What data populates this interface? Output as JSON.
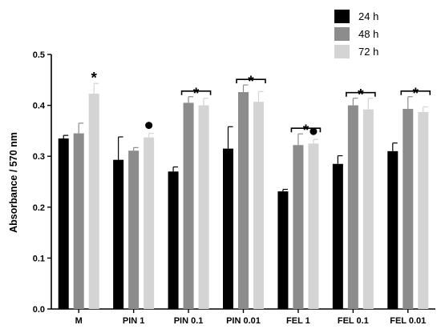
{
  "chart_data": {
    "type": "bar",
    "title": "",
    "xlabel": "",
    "ylabel": "Absorbance / 570 nm",
    "ylim": [
      0,
      0.5
    ],
    "yticks": [
      "0.0",
      "0.1",
      "0.2",
      "0.3",
      "0.4",
      "0.5"
    ],
    "grid": false,
    "legend_position": "top-right",
    "categories": [
      "M",
      "PIN 1",
      "PIN 0.1",
      "PIN 0.01",
      "FEL 1",
      "FEL 0.1",
      "FEL 0.01"
    ],
    "series": [
      {
        "name": "24 h",
        "color": "#000000",
        "values": [
          0.335,
          0.293,
          0.27,
          0.315,
          0.231,
          0.285,
          0.31
        ],
        "errors": [
          0.006,
          0.045,
          0.009,
          0.043,
          0.004,
          0.016,
          0.016
        ]
      },
      {
        "name": "48 h",
        "color": "#8c8c8c",
        "values": [
          0.345,
          0.311,
          0.405,
          0.426,
          0.322,
          0.4,
          0.393
        ],
        "errors": [
          0.02,
          0.006,
          0.012,
          0.014,
          0.022,
          0.014,
          0.024
        ]
      },
      {
        "name": "72 h",
        "color": "#d4d4d4",
        "values": [
          0.423,
          0.337,
          0.4,
          0.407,
          0.325,
          0.392,
          0.387
        ],
        "errors": [
          0.02,
          0.008,
          0.014,
          0.02,
          0.008,
          0.022,
          0.01
        ]
      }
    ],
    "annotations": [
      {
        "type": "star",
        "label": "*",
        "category": "M",
        "series": [
          "72 h"
        ]
      },
      {
        "type": "dot",
        "label": "●",
        "category": "PIN 1",
        "series": [
          "72 h"
        ]
      },
      {
        "type": "star-bracket",
        "label": "*",
        "category": "PIN 0.1",
        "series": [
          "48 h",
          "72 h"
        ]
      },
      {
        "type": "star-bracket",
        "label": "*",
        "category": "PIN 0.01",
        "series": [
          "48 h",
          "72 h"
        ]
      },
      {
        "type": "star-bracket",
        "label": "*",
        "category": "FEL 1",
        "series": [
          "48 h",
          "72 h"
        ]
      },
      {
        "type": "dot",
        "label": "●",
        "category": "FEL 1",
        "series": [
          "72 h"
        ]
      },
      {
        "type": "star-bracket",
        "label": "*",
        "category": "FEL 0.1",
        "series": [
          "48 h",
          "72 h"
        ]
      },
      {
        "type": "star-bracket",
        "label": "*",
        "category": "FEL 0.01",
        "series": [
          "48 h",
          "72 h"
        ]
      }
    ]
  }
}
